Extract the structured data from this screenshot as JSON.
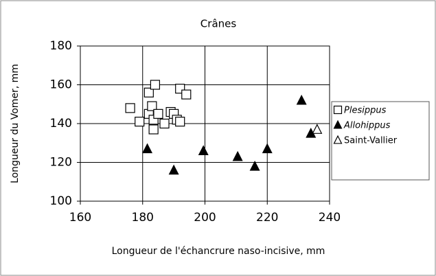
{
  "chart_data": {
    "type": "scatter",
    "title": "Crânes",
    "xlabel": "Longueur de l'échancrure naso-incisive, mm",
    "ylabel": "Longueur du Vomer, mm",
    "xlim": [
      160,
      240
    ],
    "xticks": [
      160,
      180,
      200,
      220,
      240
    ],
    "ylim": [
      100,
      180
    ],
    "yticks": [
      100,
      120,
      140,
      160,
      180
    ],
    "grid": true,
    "legend": "right",
    "series": [
      {
        "name": "Plesippus",
        "marker": "square",
        "color": "#000000",
        "x": [
          176,
          179,
          182,
          184,
          182,
          183,
          183.5,
          183.5,
          185,
          187,
          189,
          190,
          191,
          192,
          194,
          192
        ],
        "values": [
          148,
          141,
          156,
          160,
          145,
          149,
          142,
          137,
          145,
          140,
          146,
          145,
          142,
          158,
          155,
          141
        ]
      },
      {
        "name": "Allohippus",
        "marker": "filled-triangle",
        "color": "#000000",
        "x": [
          181.5,
          190,
          199.5,
          210.5,
          216,
          220,
          231,
          234
        ],
        "values": [
          127,
          116,
          126,
          123,
          118,
          127,
          152,
          135
        ]
      },
      {
        "name": "Saint-Vallier",
        "marker": "triangle",
        "color": "#000000",
        "x": [
          236
        ],
        "values": [
          137
        ]
      }
    ]
  }
}
